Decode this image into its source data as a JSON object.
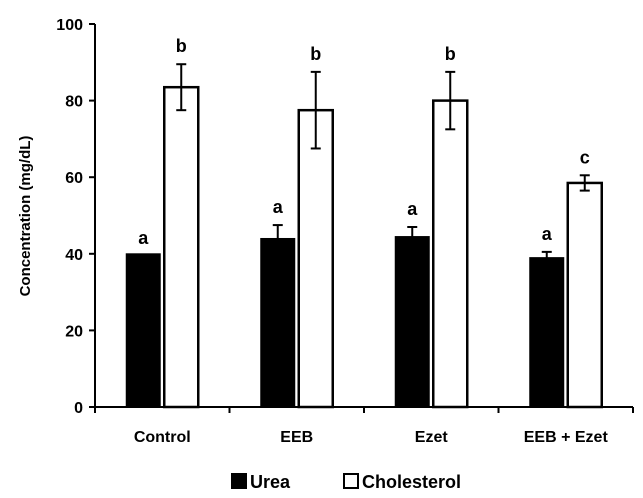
{
  "chart_data": {
    "type": "bar",
    "title": "",
    "xlabel": "",
    "ylabel": "Concentration (mg/dL)",
    "ylim": [
      0,
      100
    ],
    "yticks": [
      0,
      20,
      40,
      60,
      80,
      100
    ],
    "categories": [
      "Control",
      "EEB",
      "Ezet",
      "EEB + Ezet"
    ],
    "grid": false,
    "legend_position": "bottom-center",
    "series": [
      {
        "name": "Urea",
        "color": "#000000",
        "fill": "solid",
        "values": [
          40,
          44,
          44.5,
          39
        ],
        "errors": [
          0,
          3.5,
          2.5,
          1.5
        ],
        "labels": [
          "a",
          "a",
          "a",
          "a"
        ]
      },
      {
        "name": "Cholesterol",
        "color": "#ffffff",
        "fill": "hollow",
        "values": [
          83.5,
          77.5,
          80,
          58.5
        ],
        "errors": [
          6,
          10,
          7.5,
          2
        ],
        "labels": [
          "b",
          "b",
          "b",
          "c"
        ]
      }
    ]
  }
}
